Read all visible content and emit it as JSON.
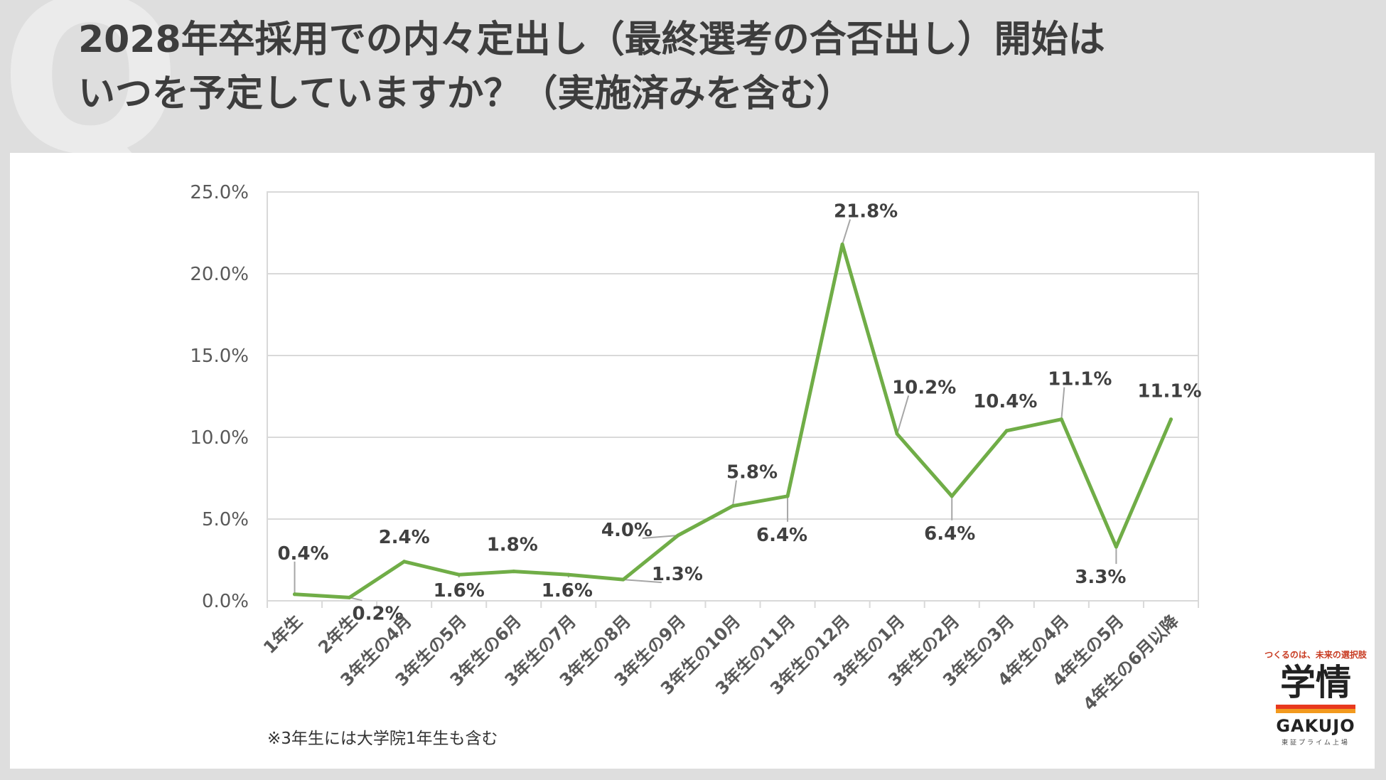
{
  "header": {
    "q_mark": "Q",
    "title_line1": "2028年卒採用での内々定出し（最終選考の合否出し）開始は",
    "title_line2": "いつを予定していますか？（実施済みを含む）"
  },
  "note": "※3年生には大学院1年生も含む",
  "brand": {
    "tagline": "つくるのは、未来の選択肢",
    "name_kanji": "学情",
    "name_latin": "GAKUJO",
    "sub": "東証プライム上場"
  },
  "colors": {
    "line": "#70ad47",
    "grid": "#d9d9d9",
    "label": "#404040",
    "tick": "#595959"
  },
  "chart_data": {
    "type": "line",
    "title": "",
    "xlabel": "",
    "ylabel": "",
    "ylim": [
      0,
      25
    ],
    "yticks": [
      "0.0%",
      "5.0%",
      "10.0%",
      "15.0%",
      "20.0%",
      "25.0%"
    ],
    "grid": true,
    "legend": "none",
    "categories": [
      "1年生",
      "2年生",
      "3年生の4月",
      "3年生の5月",
      "3年生の6月",
      "3年生の7月",
      "3年生の8月",
      "3年生の9月",
      "3年生の10月",
      "3年生の11月",
      "3年生の12月",
      "3年生の1月",
      "3年生の2月",
      "3年生の3月",
      "4年生の4月",
      "4年生の5月",
      "4年生の6月以降"
    ],
    "values": [
      0.4,
      0.2,
      2.4,
      1.6,
      1.8,
      1.6,
      1.3,
      4.0,
      5.8,
      6.4,
      21.8,
      10.2,
      6.4,
      10.4,
      11.1,
      3.3,
      11.1
    ],
    "data_labels": [
      "0.4%",
      "0.2%",
      "2.4%",
      "1.6%",
      "1.8%",
      "1.6%",
      "1.3%",
      "4.0%",
      "5.8%",
      "6.4%",
      "21.8%",
      "10.2%",
      "6.4%",
      "10.4%",
      "11.1%",
      "3.3%",
      "11.1%"
    ]
  }
}
